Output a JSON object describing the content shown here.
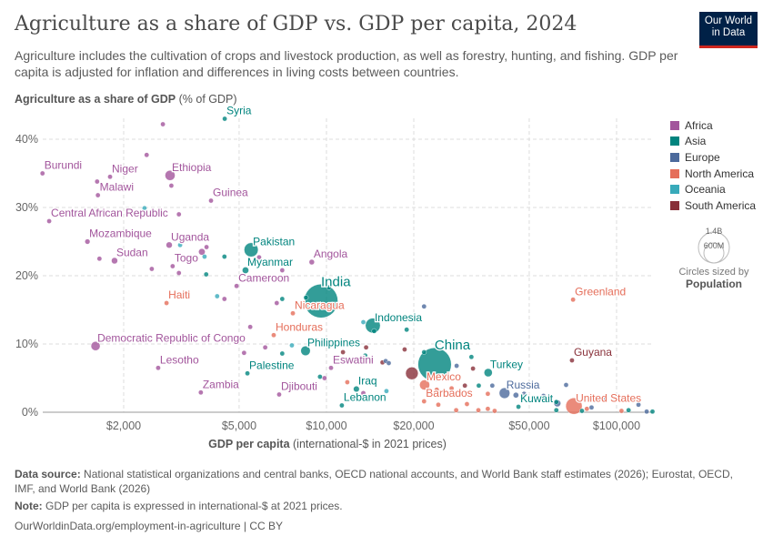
{
  "header": {
    "title": "Agriculture as a share of GDP vs. GDP per capita, 2024",
    "subtitle": "Agriculture includes the cultivation of crops and livestock production, as well as forestry, hunting, and fishing. GDP per capita is adjusted for inflation and differences in living costs between countries.",
    "logo": "Our World in Data"
  },
  "footer": {
    "source_label": "Data source:",
    "source": "National statistical organizations and central banks, OECD national accounts, and World Bank staff estimates (2026); Eurostat, OECD, IMF, and World Bank (2026)",
    "note_label": "Note:",
    "note": "GDP per capita is expressed in international-$ at 2021 prices.",
    "url": "OurWorldinData.org/employment-in-agriculture | CC BY"
  },
  "chart_data": {
    "type": "scatter",
    "title": "Agriculture as a share of GDP vs. GDP per capita, 2024",
    "ylabel_bold": "Agriculture as a share of GDP",
    "ylabel_unit": "(% of GDP)",
    "xlabel_bold": "GDP per capita",
    "xlabel_unit": "(international-$ in 2021 prices)",
    "x_scale": "log",
    "xlim": [
      1050,
      133000
    ],
    "ylim": [
      0,
      43
    ],
    "x_ticks": [
      {
        "v": 2000,
        "label": "$2,000"
      },
      {
        "v": 5000,
        "label": "$5,000"
      },
      {
        "v": 10000,
        "label": "$10,000"
      },
      {
        "v": 20000,
        "label": "$20,000"
      },
      {
        "v": 50000,
        "label": "$50,000"
      },
      {
        "v": 100000,
        "label": "$100,000"
      }
    ],
    "y_ticks": [
      {
        "v": 0,
        "label": "0%"
      },
      {
        "v": 10,
        "label": "10%"
      },
      {
        "v": 20,
        "label": "20%"
      },
      {
        "v": 30,
        "label": "30%"
      },
      {
        "v": 40,
        "label": "40%"
      }
    ],
    "grid": true,
    "legend_position": "right",
    "regions": [
      {
        "name": "Africa",
        "color": "#a2559c"
      },
      {
        "name": "Asia",
        "color": "#00847e"
      },
      {
        "name": "Europe",
        "color": "#4c6a9c"
      },
      {
        "name": "North America",
        "color": "#e56e5a"
      },
      {
        "name": "Oceania",
        "color": "#38aaba"
      },
      {
        "name": "South America",
        "color": "#883039"
      }
    ],
    "size_legend": {
      "values": [
        "1.4B",
        "600M"
      ],
      "caption": "Circles sized by",
      "variable": "Population"
    },
    "points": [
      {
        "label": "Burundi",
        "region": "Africa",
        "x": 1050,
        "y": 35,
        "pop": 13
      },
      {
        "label": "Niger",
        "region": "Africa",
        "x": 1795,
        "y": 34.5,
        "pop": 27
      },
      {
        "label": "Malawi",
        "region": "Africa",
        "x": 1630,
        "y": 31.8,
        "pop": 21
      },
      {
        "label": "Ethiopia",
        "region": "Africa",
        "x": 2890,
        "y": 34.7,
        "pop": 128
      },
      {
        "label": "Guinea",
        "region": "Africa",
        "x": 4000,
        "y": 31,
        "pop": 14
      },
      {
        "label": "Central African Republic",
        "region": "Africa",
        "x": 1107,
        "y": 28,
        "pop": 5
      },
      {
        "label": "Mozambique",
        "region": "Africa",
        "x": 1500,
        "y": 25,
        "pop": 34
      },
      {
        "label": "Sudan",
        "region": "Africa",
        "x": 1860,
        "y": 22.2,
        "pop": 50
      },
      {
        "label": "Uganda",
        "region": "Africa",
        "x": 2870,
        "y": 24.5,
        "pop": 49
      },
      {
        "label": "Togo",
        "region": "Africa",
        "x": 2950,
        "y": 21.4,
        "pop": 9
      },
      {
        "label": "Syria",
        "region": "Asia",
        "x": 4460,
        "y": 43,
        "pop": 24
      },
      {
        "label": "Pakistan",
        "region": "Asia",
        "x": 5500,
        "y": 23.8,
        "pop": 250
      },
      {
        "label": "Myanmar",
        "region": "Asia",
        "x": 5260,
        "y": 20.8,
        "pop": 54
      },
      {
        "label": "Angola",
        "region": "Africa",
        "x": 8900,
        "y": 22,
        "pop": 37
      },
      {
        "label": "Cameroon",
        "region": "Africa",
        "x": 4900,
        "y": 18.5,
        "pop": 29
      },
      {
        "label": "India",
        "region": "Asia",
        "x": 9580,
        "y": 16.3,
        "pop": 1440
      },
      {
        "label": "Nicaragua",
        "region": "North America",
        "x": 7660,
        "y": 14.5,
        "pop": 7
      },
      {
        "label": "Haiti",
        "region": "North America",
        "x": 2810,
        "y": 16,
        "pop": 12
      },
      {
        "label": "Honduras",
        "region": "North America",
        "x": 6580,
        "y": 11.3,
        "pop": 10
      },
      {
        "label": "Democratic Republic of Congo",
        "region": "Africa",
        "x": 1600,
        "y": 9.7,
        "pop": 105
      },
      {
        "label": "Lesotho",
        "region": "Africa",
        "x": 2630,
        "y": 6.5,
        "pop": 2
      },
      {
        "label": "Palestine",
        "region": "Asia",
        "x": 5340,
        "y": 5.7,
        "pop": 5
      },
      {
        "label": "Zambia",
        "region": "Africa",
        "x": 3690,
        "y": 2.9,
        "pop": 21
      },
      {
        "label": "Djibouti",
        "region": "Africa",
        "x": 6870,
        "y": 2.6,
        "pop": 1
      },
      {
        "label": "Philippines",
        "region": "Asia",
        "x": 8470,
        "y": 9,
        "pop": 115
      },
      {
        "label": "Eswatini",
        "region": "Africa",
        "x": 10370,
        "y": 6.5,
        "pop": 1.2
      },
      {
        "label": "Iraq",
        "region": "Asia",
        "x": 12680,
        "y": 3.4,
        "pop": 45
      },
      {
        "label": "Lebanon",
        "region": "Asia",
        "x": 11300,
        "y": 1,
        "pop": 5
      },
      {
        "label": "Indonesia",
        "region": "Asia",
        "x": 14450,
        "y": 12.7,
        "pop": 280
      },
      {
        "label": "China",
        "region": "Asia",
        "x": 23600,
        "y": 7,
        "pop": 1410
      },
      {
        "label": "Mexico",
        "region": "North America",
        "x": 21800,
        "y": 4,
        "pop": 130
      },
      {
        "label": "Barbados",
        "region": "North America",
        "x": 21700,
        "y": 1.6,
        "pop": 0.3
      },
      {
        "label": "Turkey",
        "region": "Asia",
        "x": 36100,
        "y": 5.8,
        "pop": 86
      },
      {
        "label": "Russia",
        "region": "Europe",
        "x": 41100,
        "y": 2.8,
        "pop": 144
      },
      {
        "label": "Kuwait",
        "region": "Asia",
        "x": 45900,
        "y": 0.8,
        "pop": 5
      },
      {
        "label": "Greenland",
        "region": "North America",
        "x": 70800,
        "y": 16.5,
        "pop": 0.06
      },
      {
        "label": "Guyana",
        "region": "South America",
        "x": 70200,
        "y": 7.6,
        "pop": 0.8
      },
      {
        "label": "United States",
        "region": "North America",
        "x": 71300,
        "y": 0.9,
        "pop": 340
      },
      {
        "region": "Africa",
        "x": 2730,
        "y": 42.2,
        "pop": 5
      },
      {
        "region": "Africa",
        "x": 2400,
        "y": 37.7,
        "pop": 5
      },
      {
        "region": "Africa",
        "x": 1620,
        "y": 33.8,
        "pop": 3
      },
      {
        "region": "Africa",
        "x": 2920,
        "y": 33.2,
        "pop": 12
      },
      {
        "region": "Africa",
        "x": 3100,
        "y": 29,
        "pop": 3
      },
      {
        "region": "Africa",
        "x": 1650,
        "y": 22.5,
        "pop": 15
      },
      {
        "region": "Africa",
        "x": 2500,
        "y": 21,
        "pop": 8
      },
      {
        "region": "Africa",
        "x": 3720,
        "y": 23.5,
        "pop": 55
      },
      {
        "region": "Africa",
        "x": 3860,
        "y": 24.2,
        "pop": 5
      },
      {
        "region": "Africa",
        "x": 3100,
        "y": 20.4,
        "pop": 5
      },
      {
        "region": "Africa",
        "x": 5860,
        "y": 22.7,
        "pop": 5
      },
      {
        "region": "Africa",
        "x": 7040,
        "y": 20.8,
        "pop": 15
      },
      {
        "region": "Africa",
        "x": 4450,
        "y": 16.6,
        "pop": 3
      },
      {
        "region": "Africa",
        "x": 6740,
        "y": 16,
        "pop": 20
      },
      {
        "region": "Africa",
        "x": 5460,
        "y": 12.5,
        "pop": 3
      },
      {
        "region": "Africa",
        "x": 5200,
        "y": 8.7,
        "pop": 3
      },
      {
        "region": "Africa",
        "x": 6150,
        "y": 9.5,
        "pop": 3
      },
      {
        "region": "Africa",
        "x": 9200,
        "y": 10.6,
        "pop": 20
      },
      {
        "region": "Africa",
        "x": 9850,
        "y": 5,
        "pop": 3
      },
      {
        "region": "Africa",
        "x": 13400,
        "y": 2.8,
        "pop": 30
      },
      {
        "region": "Africa",
        "x": 16400,
        "y": 13.6,
        "pop": 10
      },
      {
        "region": "Asia",
        "x": 7040,
        "y": 16.6,
        "pop": 3
      },
      {
        "region": "Asia",
        "x": 3850,
        "y": 20.2,
        "pop": 3
      },
      {
        "region": "Asia",
        "x": 4450,
        "y": 22.8,
        "pop": 3
      },
      {
        "region": "Asia",
        "x": 8500,
        "y": 16.8,
        "pop": 3
      },
      {
        "region": "Asia",
        "x": 10200,
        "y": 18.3,
        "pop": 5
      },
      {
        "region": "Asia",
        "x": 7040,
        "y": 8.6,
        "pop": 3
      },
      {
        "region": "Asia",
        "x": 9500,
        "y": 5.2,
        "pop": 3
      },
      {
        "region": "Asia",
        "x": 13600,
        "y": 8.3,
        "pop": 5
      },
      {
        "region": "Asia",
        "x": 14600,
        "y": 11.9,
        "pop": 30
      },
      {
        "region": "Asia",
        "x": 18900,
        "y": 12.1,
        "pop": 5
      },
      {
        "region": "Asia",
        "x": 21700,
        "y": 8.8,
        "pop": 5
      },
      {
        "region": "Asia",
        "x": 31600,
        "y": 8.1,
        "pop": 10
      },
      {
        "region": "Asia",
        "x": 33500,
        "y": 3.9,
        "pop": 3
      },
      {
        "region": "Asia",
        "x": 62000,
        "y": 1.5,
        "pop": 5
      },
      {
        "region": "Asia",
        "x": 62000,
        "y": 0.3,
        "pop": 3
      },
      {
        "region": "Asia",
        "x": 76000,
        "y": 0.2,
        "pop": 3
      },
      {
        "region": "Asia",
        "x": 110000,
        "y": 0.3,
        "pop": 3
      },
      {
        "region": "Asia",
        "x": 133000,
        "y": 0.1,
        "pop": 3
      },
      {
        "region": "Oceania",
        "x": 2360,
        "y": 29.9,
        "pop": 3
      },
      {
        "region": "Oceania",
        "x": 3130,
        "y": 24.5,
        "pop": 3
      },
      {
        "region": "Oceania",
        "x": 3800,
        "y": 22.8,
        "pop": 3
      },
      {
        "region": "Oceania",
        "x": 4200,
        "y": 17,
        "pop": 3
      },
      {
        "region": "Oceania",
        "x": 7600,
        "y": 9.8,
        "pop": 3
      },
      {
        "region": "Oceania",
        "x": 13400,
        "y": 13.2,
        "pop": 3
      },
      {
        "region": "Oceania",
        "x": 16100,
        "y": 3.1,
        "pop": 3
      },
      {
        "region": "Europe",
        "x": 21700,
        "y": 15.5,
        "pop": 3
      },
      {
        "region": "Europe",
        "x": 16000,
        "y": 7.5,
        "pop": 5
      },
      {
        "region": "Europe",
        "x": 16400,
        "y": 7.2,
        "pop": 5
      },
      {
        "region": "Europe",
        "x": 28100,
        "y": 6.8,
        "pop": 3
      },
      {
        "region": "Europe",
        "x": 37300,
        "y": 3.9,
        "pop": 5
      },
      {
        "region": "Europe",
        "x": 45000,
        "y": 2.5,
        "pop": 40
      },
      {
        "region": "Europe",
        "x": 48000,
        "y": 2.7,
        "pop": 20
      },
      {
        "region": "Europe",
        "x": 56000,
        "y": 2.4,
        "pop": 10
      },
      {
        "region": "Europe",
        "x": 67000,
        "y": 4,
        "pop": 3
      },
      {
        "region": "Europe",
        "x": 62500,
        "y": 1.3,
        "pop": 60
      },
      {
        "region": "Europe",
        "x": 82000,
        "y": 0.7,
        "pop": 5
      },
      {
        "region": "Europe",
        "x": 90000,
        "y": 2,
        "pop": 3
      },
      {
        "region": "Europe",
        "x": 119000,
        "y": 1.1,
        "pop": 3
      },
      {
        "region": "Europe",
        "x": 127000,
        "y": 0.1,
        "pop": 3
      },
      {
        "region": "North America",
        "x": 11800,
        "y": 4.4,
        "pop": 3
      },
      {
        "region": "North America",
        "x": 24000,
        "y": 3.3,
        "pop": 3
      },
      {
        "region": "North America",
        "x": 24300,
        "y": 1.1,
        "pop": 3
      },
      {
        "region": "North America",
        "x": 30500,
        "y": 1.2,
        "pop": 3
      },
      {
        "region": "North America",
        "x": 33400,
        "y": 0.3,
        "pop": 3
      },
      {
        "region": "North America",
        "x": 36000,
        "y": 0.5,
        "pop": 3
      },
      {
        "region": "North America",
        "x": 36000,
        "y": 2.7,
        "pop": 3
      },
      {
        "region": "North America",
        "x": 38000,
        "y": 0.2,
        "pop": 3
      },
      {
        "region": "North America",
        "x": 79000,
        "y": 0.5,
        "pop": 3
      },
      {
        "region": "North America",
        "x": 104000,
        "y": 0.2,
        "pop": 3
      },
      {
        "region": "North America",
        "x": 28000,
        "y": 0.3,
        "pop": 3
      },
      {
        "region": "North America",
        "x": 27000,
        "y": 3.5,
        "pop": 3
      },
      {
        "region": "South America",
        "x": 11400,
        "y": 8.8,
        "pop": 3
      },
      {
        "region": "South America",
        "x": 13700,
        "y": 9.5,
        "pop": 3
      },
      {
        "region": "South America",
        "x": 15600,
        "y": 7.3,
        "pop": 10
      },
      {
        "region": "South America",
        "x": 18600,
        "y": 9.2,
        "pop": 10
      },
      {
        "region": "South America",
        "x": 19700,
        "y": 5.7,
        "pop": 200
      },
      {
        "region": "South America",
        "x": 32000,
        "y": 6.4,
        "pop": 3
      },
      {
        "region": "South America",
        "x": 30000,
        "y": 3.9,
        "pop": 3
      }
    ]
  }
}
